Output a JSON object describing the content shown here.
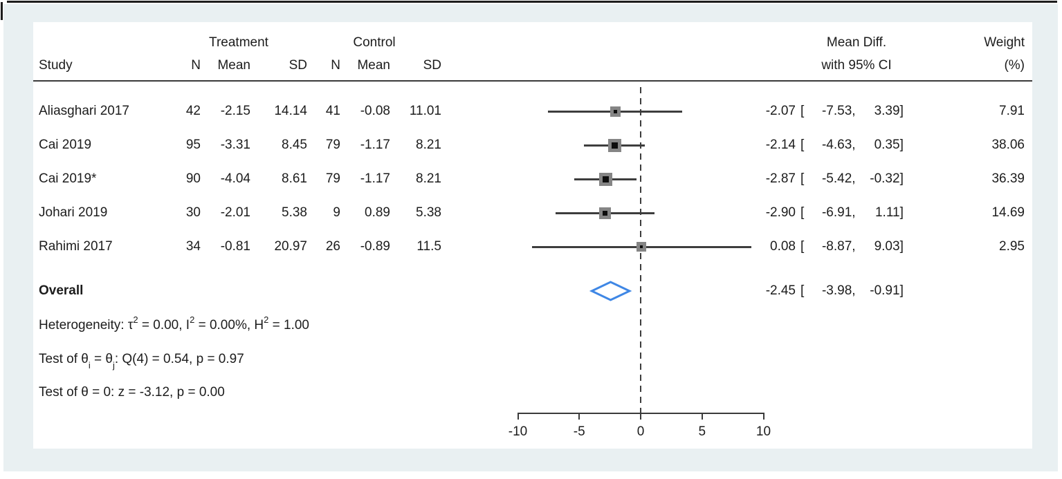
{
  "figure": {
    "background": "#e9f0f2",
    "panel_background": "#ffffff",
    "text_color": "#1c1c1c",
    "rule_color": "#3a3a3a",
    "ci_line_color": "#3d3d3d",
    "marker_outer_color": "#858585",
    "marker_inner_color": "#0d0d0d",
    "diamond_color": "#3f87e5"
  },
  "header": {
    "study": "Study",
    "group_treatment": "Treatment",
    "group_control": "Control",
    "n": "N",
    "mean": "Mean",
    "sd": "SD",
    "effect_line1": "Mean Diff.",
    "effect_line2": "with 95% CI",
    "weight_line1": "Weight",
    "weight_line2": "(%)"
  },
  "format": {
    "open_bracket": "[",
    "separator": ",",
    "close_bracket": "]"
  },
  "rows": [
    {
      "study": "Aliasghari 2017",
      "t_n": "42",
      "t_mean": "-2.15",
      "t_sd": "14.14",
      "c_n": "41",
      "c_mean": "-0.08",
      "c_sd": "11.01",
      "est": "-2.07",
      "lo": "-7.53",
      "hi": "3.39",
      "weight": "7.91"
    },
    {
      "study": "Cai 2019",
      "t_n": "95",
      "t_mean": "-3.31",
      "t_sd": "8.45",
      "c_n": "79",
      "c_mean": "-1.17",
      "c_sd": "8.21",
      "est": "-2.14",
      "lo": "-4.63",
      "hi": "0.35",
      "weight": "38.06"
    },
    {
      "study": "Cai 2019*",
      "t_n": "90",
      "t_mean": "-4.04",
      "t_sd": "8.61",
      "c_n": "79",
      "c_mean": "-1.17",
      "c_sd": "8.21",
      "est": "-2.87",
      "lo": "-5.42",
      "hi": "-0.32",
      "weight": "36.39"
    },
    {
      "study": "Johari 2019",
      "t_n": "30",
      "t_mean": "-2.01",
      "t_sd": "5.38",
      "c_n": "9",
      "c_mean": "0.89",
      "c_sd": "5.38",
      "est": "-2.90",
      "lo": "-6.91",
      "hi": "1.11",
      "weight": "14.69"
    },
    {
      "study": "Rahimi 2017",
      "t_n": "34",
      "t_mean": "-0.81",
      "t_sd": "20.97",
      "c_n": "26",
      "c_mean": "-0.89",
      "c_sd": "11.5",
      "est": "0.08",
      "lo": "-8.87",
      "hi": "9.03",
      "weight": "2.95"
    }
  ],
  "overall": {
    "label": "Overall",
    "est": "-2.45",
    "lo": "-3.98",
    "hi": "-0.91"
  },
  "stats": {
    "heterogeneity": [
      {
        "t": "Heterogeneity: τ"
      },
      {
        "t": "2",
        "sup": true
      },
      {
        "t": " = 0.00, I"
      },
      {
        "t": "2",
        "sup": true
      },
      {
        "t": " = 0.00%, H"
      },
      {
        "t": "2",
        "sup": true
      },
      {
        "t": " = 1.00"
      }
    ],
    "test_q": [
      {
        "t": "Test of θ"
      },
      {
        "t": "i",
        "sub": true
      },
      {
        "t": " = θ"
      },
      {
        "t": "j",
        "sub": true
      },
      {
        "t": ": Q(4) = 0.54, p = 0.97"
      }
    ],
    "test_z": [
      {
        "t": "Test of θ = 0: z = -3.12, p = 0.00"
      }
    ]
  },
  "chart_data": {
    "type": "forest",
    "title": "",
    "effect_label": "Mean Diff. with 95% CI",
    "x_axis": {
      "range": [
        -10,
        10
      ],
      "ticks": [
        -10,
        -5,
        0,
        5,
        10
      ],
      "zero_line": 0
    },
    "studies": [
      {
        "label": "Aliasghari 2017",
        "treatment": {
          "n": 42,
          "mean": -2.15,
          "sd": 14.14
        },
        "control": {
          "n": 41,
          "mean": -0.08,
          "sd": 11.01
        },
        "effect": -2.07,
        "ci": [
          -7.53,
          3.39
        ],
        "weight_pct": 7.91
      },
      {
        "label": "Cai 2019",
        "treatment": {
          "n": 95,
          "mean": -3.31,
          "sd": 8.45
        },
        "control": {
          "n": 79,
          "mean": -1.17,
          "sd": 8.21
        },
        "effect": -2.14,
        "ci": [
          -4.63,
          0.35
        ],
        "weight_pct": 38.06
      },
      {
        "label": "Cai 2019*",
        "treatment": {
          "n": 90,
          "mean": -4.04,
          "sd": 8.61
        },
        "control": {
          "n": 79,
          "mean": -1.17,
          "sd": 8.21
        },
        "effect": -2.87,
        "ci": [
          -5.42,
          -0.32
        ],
        "weight_pct": 36.39
      },
      {
        "label": "Johari 2019",
        "treatment": {
          "n": 30,
          "mean": -2.01,
          "sd": 5.38
        },
        "control": {
          "n": 9,
          "mean": 0.89,
          "sd": 5.38
        },
        "effect": -2.9,
        "ci": [
          -6.91,
          1.11
        ],
        "weight_pct": 14.69
      },
      {
        "label": "Rahimi 2017",
        "treatment": {
          "n": 34,
          "mean": -0.81,
          "sd": 20.97
        },
        "control": {
          "n": 26,
          "mean": -0.89,
          "sd": 11.5
        },
        "effect": 0.08,
        "ci": [
          -8.87,
          9.03
        ],
        "weight_pct": 2.95
      }
    ],
    "overall": {
      "effect": -2.45,
      "ci": [
        -3.98,
        -0.91
      ]
    },
    "heterogeneity": {
      "tau2": 0.0,
      "I2_pct": 0.0,
      "H2": 1.0
    },
    "test_Q": {
      "df": 4,
      "Q": 0.54,
      "p": 0.97
    },
    "test_z": {
      "z": -3.12,
      "p": 0.0
    }
  }
}
